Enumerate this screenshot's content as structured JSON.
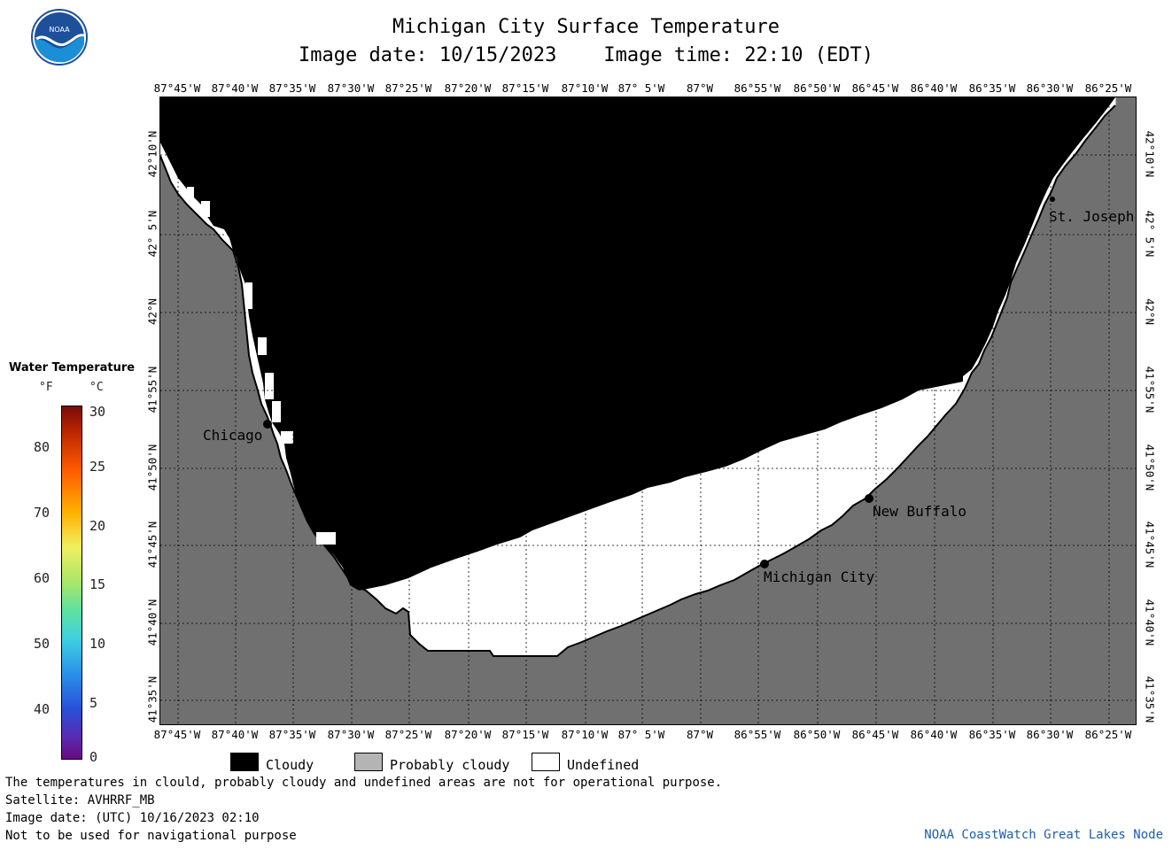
{
  "header": {
    "title": "Michigan City Surface Temperature",
    "date_line": "Image date: 10/15/2023    Image time: 22:10 (EDT)"
  },
  "logo": {
    "text": "NOAA",
    "icon": "noaa-logo-icon"
  },
  "map": {
    "lon_labels": [
      "87°45'W",
      "87°40'W",
      "87°35'W",
      "87°30'W",
      "87°25'W",
      "87°20'W",
      "87°15'W",
      "87°10'W",
      "87° 5'W",
      "87°W",
      "86°55'W",
      "86°50'W",
      "86°45'W",
      "86°40'W",
      "86°35'W",
      "86°30'W",
      "86°25'W"
    ],
    "lat_labels": [
      "42°10'N",
      "42° 5'N",
      "42°N",
      "41°55'N",
      "41°50'N",
      "41°45'N",
      "41°40'N",
      "41°35'N"
    ],
    "cities": [
      {
        "name": "Chicago"
      },
      {
        "name": "St. Joseph"
      },
      {
        "name": "New Buffalo"
      },
      {
        "name": "Michigan City"
      }
    ],
    "colors": {
      "cloudy": "#000000",
      "land": "#707070",
      "undefined": "#ffffff",
      "grid": "#000000"
    }
  },
  "legend": {
    "title": "Water Temperature",
    "unit_f": "°F",
    "unit_c": "°C",
    "f_ticks": [
      "80",
      "70",
      "60",
      "50",
      "40"
    ],
    "c_ticks": [
      "30",
      "25",
      "20",
      "15",
      "10",
      "5",
      "0"
    ],
    "colormap": "rainbow"
  },
  "key": {
    "items": [
      {
        "label": "Cloudy",
        "color": "#000000"
      },
      {
        "label": "Probably cloudy",
        "color": "#b4b4b4"
      },
      {
        "label": "Undefined",
        "color": "#ffffff"
      }
    ]
  },
  "notes": {
    "line1": "The temperatures in clould, probably cloudy and undefined areas are not for operational purpose.",
    "line2": "Satellite: AVHRRF_MB",
    "line3": "Image date: (UTC) 10/16/2023  02:10",
    "line4": "Not to be used for navigational purpose",
    "credit": "NOAA CoastWatch Great Lakes Node"
  }
}
